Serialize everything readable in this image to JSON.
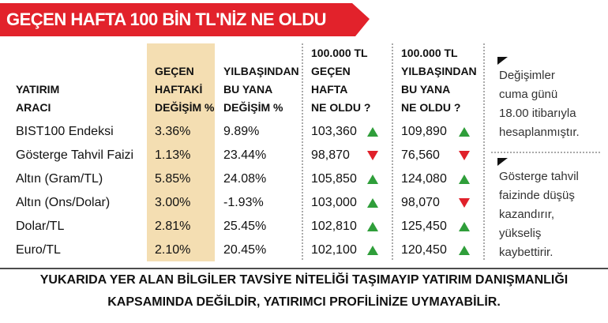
{
  "header": {
    "title": "GEÇEN HAFTA 100 BİN TL'NİZ NE OLDU"
  },
  "table": {
    "columns": [
      [
        "YATIRIM",
        "ARACI"
      ],
      [
        "GEÇEN",
        "HAFTAKİ",
        "DEĞİŞİM %"
      ],
      [
        "YILBAŞINDAN",
        "BU YANA",
        "DEĞİŞİM %"
      ],
      [
        "100.000 TL",
        "GEÇEN",
        "HAFTA",
        "NE OLDU ?"
      ],
      [
        "100.000 TL",
        "YILBAŞINDAN",
        "BU YANA",
        "NE OLDU ?"
      ]
    ],
    "rows": [
      [
        "BIST100 Endeksi",
        "3.36%",
        "9.89%",
        "103,360",
        "109,890"
      ],
      [
        "Gösterge Tahvil Faizi",
        "1.13%",
        "23.44%",
        "98,870",
        "76,560"
      ],
      [
        "Altın (Gram/TL)",
        "5.85%",
        "24.08%",
        "105,850",
        "124,080"
      ],
      [
        "Altın (Ons/Dolar)",
        "3.00%",
        "-1.93%",
        "103,000",
        "98,070"
      ],
      [
        "Dolar/TL",
        "2.81%",
        "25.45%",
        "102,810",
        "125,450"
      ],
      [
        "Euro/TL",
        "2.10%",
        "20.45%",
        "102,100",
        "120,450"
      ]
    ],
    "trends": [
      [
        "up",
        "up"
      ],
      [
        "down",
        "down"
      ],
      [
        "up",
        "up"
      ],
      [
        "up",
        "down"
      ],
      [
        "up",
        "up"
      ],
      [
        "up",
        "up"
      ]
    ]
  },
  "notes": [
    [
      "Değişimler",
      "cuma günü",
      "18.00 itibarıyla",
      "hesaplanmıştır."
    ],
    [
      "Gösterge tahvil",
      "faizinde düşüş",
      "kazandırır,",
      "yükseliş",
      "kaybettirir."
    ]
  ],
  "footer": [
    "YUKARIDA YER ALAN BİLGİLER TAVSİYE NİTELİĞİ TAŞIMAYIP YATIRIM DANIŞMANLIĞI",
    "KAPSAMINDA DEĞİLDİR, YATIRIMCI PROFİLİNİZE UYMAYABİLİR."
  ]
}
